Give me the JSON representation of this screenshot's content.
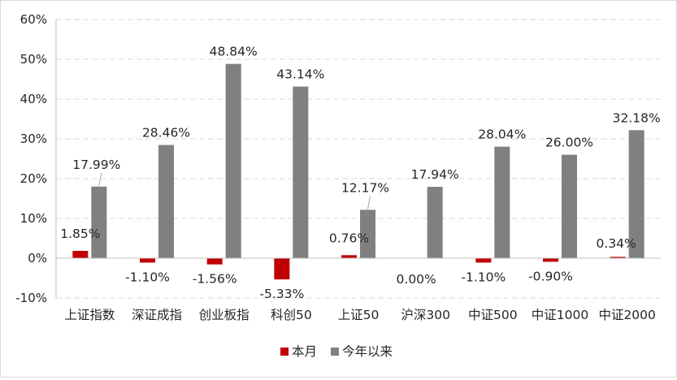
{
  "chart_data": {
    "type": "bar",
    "title": "",
    "xlabel": "",
    "ylabel": "",
    "ylim": [
      -10,
      60
    ],
    "y_ticks": [
      "60%",
      "50%",
      "40%",
      "30%",
      "20%",
      "10%",
      "0%",
      "-10%"
    ],
    "y_tick_values": [
      60,
      50,
      40,
      30,
      20,
      10,
      0,
      -10
    ],
    "grid": "horizontal dashed",
    "legend_position": "bottom",
    "categories": [
      "上证指数",
      "深证成指",
      "创业板指",
      "科创50",
      "上证50",
      "沪深300",
      "中证500",
      "中证1000",
      "中证2000"
    ],
    "series": [
      {
        "name": "本月",
        "color": "#c00000",
        "values": [
          1.85,
          -1.1,
          -1.56,
          -5.33,
          0.76,
          0.0,
          -1.1,
          -0.9,
          0.34
        ],
        "labels": [
          "1.85%",
          "-1.10%",
          "-1.56%",
          "-5.33%",
          "0.76%",
          "0.00%",
          "-1.10%",
          "-0.90%",
          "0.34%"
        ]
      },
      {
        "name": "今年以来",
        "color": "#808080",
        "values": [
          17.99,
          28.46,
          48.84,
          43.14,
          12.17,
          17.94,
          28.04,
          26.0,
          32.18
        ],
        "labels": [
          "17.99%",
          "28.46%",
          "48.84%",
          "43.14%",
          "12.17%",
          "17.94%",
          "28.04%",
          "26.00%",
          "32.18%"
        ]
      }
    ]
  }
}
